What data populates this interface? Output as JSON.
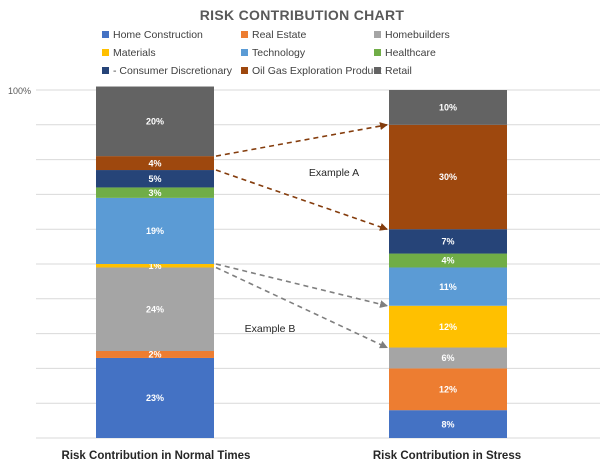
{
  "chart_data": {
    "type": "bar",
    "stacked": true,
    "title": "RISK CONTRIBUTION CHART",
    "xlabel": "",
    "ylabel": "",
    "ylim": [
      0,
      100
    ],
    "ytick_label": "100%",
    "grid": true,
    "legend_position": "top",
    "categories": [
      "Risk Contribution in Normal Times",
      "Risk Contribution in Stress"
    ],
    "series": [
      {
        "name": "Home Construction",
        "color": "#4472C4",
        "values": [
          23,
          8
        ],
        "labels": [
          "23%",
          "8%"
        ]
      },
      {
        "name": "Real Estate",
        "color": "#ED7D31",
        "values": [
          2,
          12
        ],
        "labels": [
          "2%",
          "12%"
        ]
      },
      {
        "name": "Homebuilders",
        "color": "#A5A5A5",
        "values": [
          24,
          6
        ],
        "labels": [
          "24%",
          "6%"
        ]
      },
      {
        "name": "Materials",
        "color": "#FFC000",
        "values": [
          1,
          12
        ],
        "labels": [
          "1%",
          "12%"
        ]
      },
      {
        "name": "Technology",
        "color": "#5B9BD5",
        "values": [
          19,
          11
        ],
        "labels": [
          "19%",
          "11%"
        ]
      },
      {
        "name": "Healthcare",
        "color": "#70AD47",
        "values": [
          3,
          4
        ],
        "labels": [
          "3%",
          "4%"
        ]
      },
      {
        "name": "- Consumer Discretionary",
        "color": "#264478",
        "values": [
          5,
          7
        ],
        "labels": [
          "5%",
          "7%"
        ]
      },
      {
        "name": "Oil Gas Exploration Product",
        "color": "#9E480E",
        "values": [
          4,
          30
        ],
        "labels": [
          "4%",
          "30%"
        ]
      },
      {
        "name": "Retail",
        "color": "#636363",
        "values": [
          20,
          10
        ],
        "labels": [
          "20%",
          "10%"
        ]
      }
    ],
    "annotations": [
      {
        "text": "Example A",
        "color": "#843C0C",
        "from_series": 7
      },
      {
        "text": "Example B",
        "color": "#7F7F7F",
        "from_series": 3
      }
    ]
  }
}
